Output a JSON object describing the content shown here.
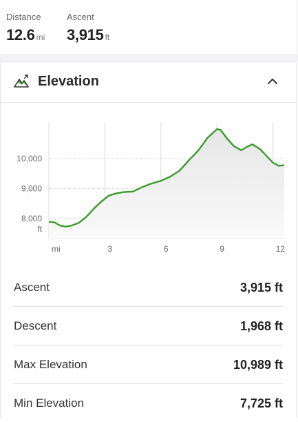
{
  "stats": [
    {
      "label": "Distance",
      "value": "12.6",
      "unit": "mi"
    },
    {
      "label": "Ascent",
      "value": "3,915",
      "unit": "ft"
    }
  ],
  "elevation": {
    "title": "Elevation",
    "collapse_icon": "chevron-up-icon",
    "header_icon": "mountain-icon",
    "colors": {
      "line": "#3a9a2a",
      "fill_top": "#e6e6e6",
      "grid": "#d8d8d8"
    },
    "metrics": [
      {
        "label": "Ascent",
        "value": "3,915 ft"
      },
      {
        "label": "Descent",
        "value": "1,968 ft"
      },
      {
        "label": "Max Elevation",
        "value": "10,989 ft"
      },
      {
        "label": "Min Elevation",
        "value": "7,725 ft"
      }
    ]
  },
  "chart_data": {
    "type": "area",
    "x_unit_label": "mi",
    "y_unit_label": "ft",
    "x_ticks": [
      "3",
      "6",
      "9",
      "12"
    ],
    "y_ticks": [
      "8,000",
      "9,000",
      "10,000"
    ],
    "xlim": [
      0,
      12.6
    ],
    "ylim": [
      7350,
      11200
    ],
    "grid": true,
    "x": [
      0,
      0.3,
      0.6,
      0.9,
      1.2,
      1.6,
      2.0,
      2.4,
      2.8,
      3.2,
      3.6,
      4.0,
      4.5,
      5.0,
      5.5,
      6.0,
      6.5,
      7.0,
      7.5,
      8.0,
      8.5,
      9.0,
      9.2,
      9.5,
      9.9,
      10.3,
      10.6,
      10.9,
      11.3,
      11.7,
      12.0,
      12.3,
      12.6
    ],
    "y": [
      7890,
      7870,
      7760,
      7725,
      7760,
      7850,
      8050,
      8320,
      8560,
      8760,
      8840,
      8880,
      8900,
      9050,
      9170,
      9260,
      9400,
      9600,
      9950,
      10270,
      10700,
      10989,
      10960,
      10700,
      10420,
      10280,
      10390,
      10480,
      10320,
      10060,
      9860,
      9760,
      9780
    ]
  }
}
